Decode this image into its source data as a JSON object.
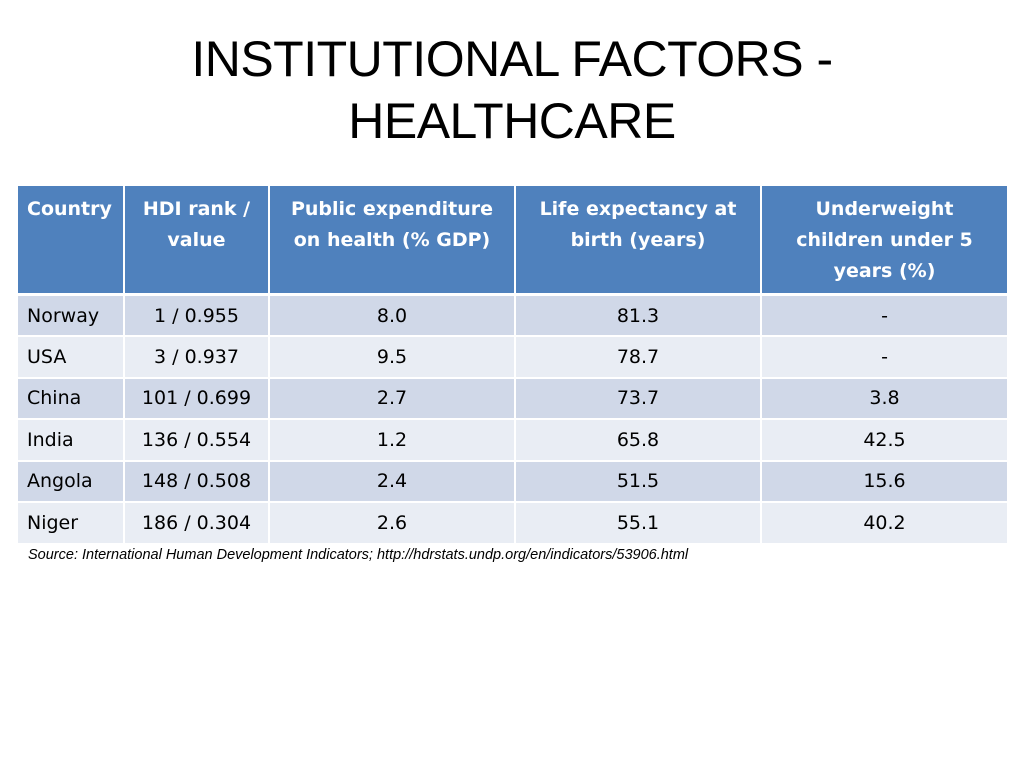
{
  "slide": {
    "title_line1": "INSTITUTIONAL FACTORS -",
    "title_line2": "HEALTHCARE"
  },
  "table": {
    "headers": [
      "Country",
      "HDI rank / value",
      "Public expenditure on health (% GDP)",
      "Life expectancy at birth (years)",
      "Underweight children under 5 years (%)"
    ],
    "rows": [
      [
        "Norway",
        "1 / 0.955",
        "8.0",
        "81.3",
        "-"
      ],
      [
        "USA",
        "3 / 0.937",
        "9.5",
        "78.7",
        "-"
      ],
      [
        "China",
        "101 / 0.699",
        "2.7",
        "73.7",
        "3.8"
      ],
      [
        "India",
        "136 / 0.554",
        "1.2",
        "65.8",
        "42.5"
      ],
      [
        "Angola",
        "148 / 0.508",
        "2.4",
        "51.5",
        "15.6"
      ],
      [
        "Niger",
        "186 / 0.304",
        "2.6",
        "55.1",
        "40.2"
      ]
    ]
  },
  "source": "Source: International Human Development Indicators; http://hdrstats.undp.org/en/indicators/53906.html",
  "colors": {
    "header_bg": "#4f81bd",
    "row_odd_bg": "#d0d8e8",
    "row_even_bg": "#e9edf4"
  }
}
